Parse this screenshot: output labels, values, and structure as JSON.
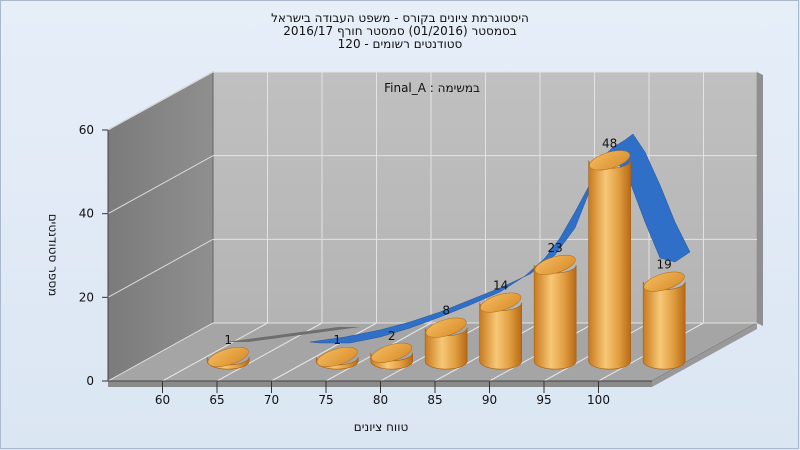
{
  "chart_data": {
    "type": "bar",
    "title_lines": [
      "היסטוגרמת ציונים בקורס - משפט העבודה בישראל",
      "בסמסטר  (01/2016)  סמסטר חורף 2016/17",
      "סטודנטים רשומים - 120"
    ],
    "annotation": "במשימה : Final_A",
    "xlabel": "טווח ציונים",
    "ylabel": "מספר סטודנטים",
    "x_ticks": [
      "60",
      "65",
      "70",
      "75",
      "80",
      "85",
      "90",
      "95",
      "100"
    ],
    "y_ticks": [
      "0",
      "20",
      "40",
      "60"
    ],
    "ylim": [
      0,
      60
    ],
    "series": [
      {
        "type": "bar",
        "x": [
          62.5,
          72.5,
          77.5,
          82.5,
          87.5,
          92.5,
          97.5,
          102.5
        ],
        "values": [
          1,
          1,
          2,
          8,
          14,
          23,
          48,
          19
        ],
        "labels": [
          "1",
          "1",
          "2",
          "8",
          "14",
          "23",
          "48",
          "19"
        ],
        "color": "#e8a23c"
      },
      {
        "type": "curve",
        "color": "#2f6fc7"
      }
    ],
    "grid": true,
    "style": "3d"
  }
}
